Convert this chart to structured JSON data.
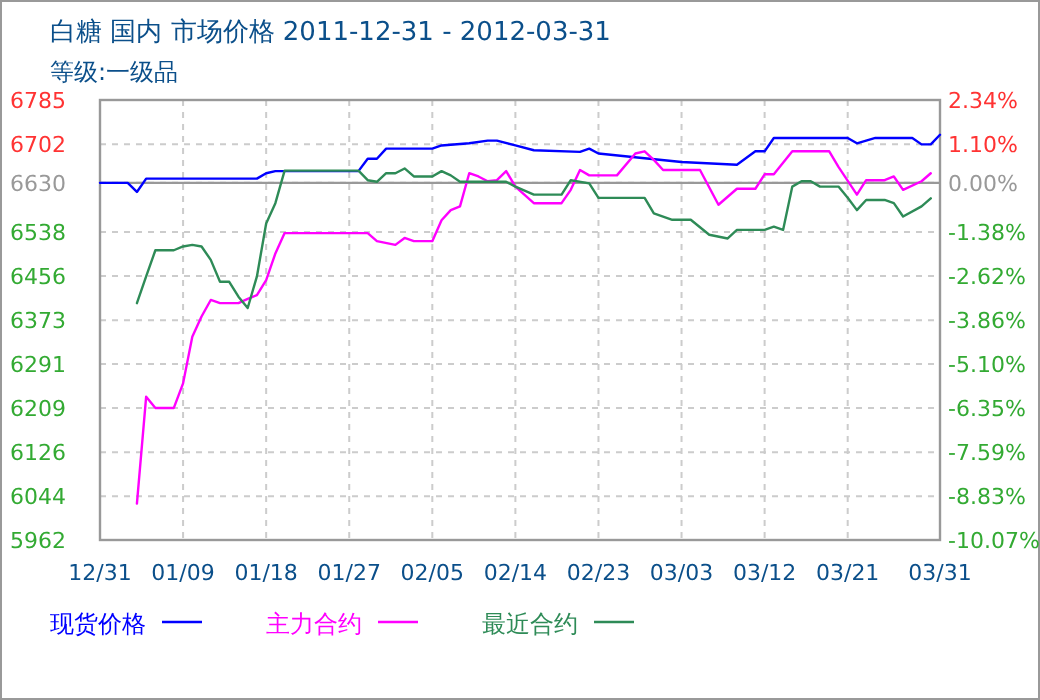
{
  "chart_data": {
    "type": "line",
    "title": "白糖 国内 市场价格 2011-12-31 - 2012-03-31",
    "subtitle": "等级:一级品",
    "xlim": [
      "2011-12-31",
      "2012-03-31"
    ],
    "xticks": [
      {
        "value": "2011-12-31",
        "label": "12/31"
      },
      {
        "value": "2012-01-09",
        "label": "01/09"
      },
      {
        "value": "2012-01-18",
        "label": "01/18"
      },
      {
        "value": "2012-01-27",
        "label": "01/27"
      },
      {
        "value": "2012-02-05",
        "label": "02/05"
      },
      {
        "value": "2012-02-14",
        "label": "02/14"
      },
      {
        "value": "2012-02-23",
        "label": "02/23"
      },
      {
        "value": "2012-03-03",
        "label": "03/03"
      },
      {
        "value": "2012-03-12",
        "label": "03/12"
      },
      {
        "value": "2012-03-21",
        "label": "03/21"
      },
      {
        "value": "2012-03-31",
        "label": "03/31"
      }
    ],
    "ylim": [
      5962,
      6785
    ],
    "yticks": [
      5962,
      6044,
      6126,
      6209,
      6291,
      6373,
      6456,
      6538,
      6630,
      6702,
      6785
    ],
    "y2lim": [
      -10.07,
      2.34
    ],
    "y2ticks": [
      {
        "value": -10.07,
        "label": "-10.07%"
      },
      {
        "value": -8.83,
        "label": "-8.83%"
      },
      {
        "value": -7.59,
        "label": "-7.59%"
      },
      {
        "value": -6.35,
        "label": "-6.35%"
      },
      {
        "value": -5.1,
        "label": "-5.10%"
      },
      {
        "value": -3.86,
        "label": "-3.86%"
      },
      {
        "value": -2.62,
        "label": "-2.62%"
      },
      {
        "value": -1.38,
        "label": "-1.38%"
      },
      {
        "value": 0,
        "label": "0.00%"
      },
      {
        "value": 1.1,
        "label": "1.10%"
      },
      {
        "value": 2.34,
        "label": "2.34%"
      }
    ],
    "grid": true,
    "legend": "bottom",
    "line_style": "solid",
    "marker": "none",
    "ref_lines": [
      {
        "axis": "y",
        "value": 6630,
        "color": "#999999"
      }
    ],
    "series": [
      {
        "name": "现货价格",
        "color": "#0000ff",
        "x": [
          "2011-12-31",
          "2012-01-03",
          "2012-01-04",
          "2012-01-05",
          "2012-01-17",
          "2012-01-18",
          "2012-01-19",
          "2012-01-28",
          "2012-01-29",
          "2012-01-30",
          "2012-01-31",
          "2012-02-05",
          "2012-02-06",
          "2012-02-09",
          "2012-02-11",
          "2012-02-12",
          "2012-02-14",
          "2012-02-16",
          "2012-02-21",
          "2012-02-22",
          "2012-02-23",
          "2012-02-28",
          "2012-03-03",
          "2012-03-09",
          "2012-03-11",
          "2012-03-12",
          "2012-03-13",
          "2012-03-21",
          "2012-03-22",
          "2012-03-24",
          "2012-03-28",
          "2012-03-29",
          "2012-03-30",
          "2012-03-31"
        ],
        "values": [
          6630,
          6630,
          6613,
          6638,
          6638,
          6648,
          6652,
          6652,
          6675,
          6675,
          6694,
          6694,
          6700,
          6704,
          6709,
          6709,
          6700,
          6691,
          6688,
          6694,
          6685,
          6676,
          6669,
          6664,
          6689,
          6689,
          6714,
          6714,
          6704,
          6714,
          6714,
          6702,
          6702,
          6720
        ]
      },
      {
        "name": "主力合约",
        "color": "#ff00ff",
        "x": [
          "2012-01-04",
          "2012-01-05",
          "2012-01-06",
          "2012-01-08",
          "2012-01-09",
          "2012-01-10",
          "2012-01-11",
          "2012-01-12",
          "2012-01-13",
          "2012-01-15",
          "2012-01-16",
          "2012-01-17",
          "2012-01-18",
          "2012-01-19",
          "2012-01-20",
          "2012-01-29",
          "2012-01-30",
          "2012-02-01",
          "2012-02-02",
          "2012-02-03",
          "2012-02-05",
          "2012-02-06",
          "2012-02-07",
          "2012-02-08",
          "2012-02-09",
          "2012-02-10",
          "2012-02-11",
          "2012-02-12",
          "2012-02-13",
          "2012-02-14",
          "2012-02-16",
          "2012-02-19",
          "2012-02-20",
          "2012-02-21",
          "2012-02-22",
          "2012-02-25",
          "2012-02-27",
          "2012-02-28",
          "2012-02-29",
          "2012-03-01",
          "2012-03-05",
          "2012-03-07",
          "2012-03-09",
          "2012-03-11",
          "2012-03-12",
          "2012-03-13",
          "2012-03-15",
          "2012-03-19",
          "2012-03-20",
          "2012-03-22",
          "2012-03-23",
          "2012-03-25",
          "2012-03-26",
          "2012-03-27",
          "2012-03-29",
          "2012-03-30"
        ],
        "values": [
          6030,
          6230,
          6209,
          6209,
          6255,
          6342,
          6380,
          6411,
          6405,
          6405,
          6413,
          6420,
          6448,
          6498,
          6536,
          6536,
          6521,
          6514,
          6527,
          6521,
          6521,
          6560,
          6579,
          6586,
          6648,
          6642,
          6633,
          6635,
          6652,
          6623,
          6592,
          6592,
          6617,
          6654,
          6644,
          6644,
          6685,
          6689,
          6673,
          6654,
          6654,
          6589,
          6619,
          6619,
          6646,
          6646,
          6689,
          6689,
          6660,
          6608,
          6635,
          6635,
          6642,
          6617,
          6633,
          6648
        ]
      },
      {
        "name": "最近合约",
        "color": "#2e8b57",
        "x": [
          "2012-01-04",
          "2012-01-05",
          "2012-01-06",
          "2012-01-08",
          "2012-01-09",
          "2012-01-10",
          "2012-01-11",
          "2012-01-12",
          "2012-01-13",
          "2012-01-14",
          "2012-01-15",
          "2012-01-16",
          "2012-01-17",
          "2012-01-18",
          "2012-01-19",
          "2012-01-20",
          "2012-01-28",
          "2012-01-29",
          "2012-01-30",
          "2012-01-31",
          "2012-02-01",
          "2012-02-02",
          "2012-02-03",
          "2012-02-05",
          "2012-02-06",
          "2012-02-07",
          "2012-02-08",
          "2012-02-13",
          "2012-02-14",
          "2012-02-16",
          "2012-02-19",
          "2012-02-20",
          "2012-02-22",
          "2012-02-23",
          "2012-02-28",
          "2012-02-29",
          "2012-03-02",
          "2012-03-04",
          "2012-03-06",
          "2012-03-08",
          "2012-03-09",
          "2012-03-12",
          "2012-03-13",
          "2012-03-14",
          "2012-03-15",
          "2012-03-16",
          "2012-03-17",
          "2012-03-18",
          "2012-03-20",
          "2012-03-21",
          "2012-03-22",
          "2012-03-23",
          "2012-03-25",
          "2012-03-26",
          "2012-03-27",
          "2012-03-29",
          "2012-03-30"
        ],
        "values": [
          6405,
          6455,
          6504,
          6504,
          6511,
          6514,
          6511,
          6486,
          6445,
          6445,
          6417,
          6396,
          6455,
          6554,
          6592,
          6653,
          6653,
          6635,
          6632,
          6648,
          6648,
          6657,
          6642,
          6642,
          6652,
          6644,
          6632,
          6632,
          6623,
          6608,
          6608,
          6635,
          6629,
          6602,
          6602,
          6573,
          6561,
          6561,
          6533,
          6526,
          6542,
          6542,
          6548,
          6542,
          6623,
          6633,
          6633,
          6623,
          6623,
          6602,
          6579,
          6598,
          6598,
          6592,
          6567,
          6586,
          6601
        ]
      }
    ]
  }
}
